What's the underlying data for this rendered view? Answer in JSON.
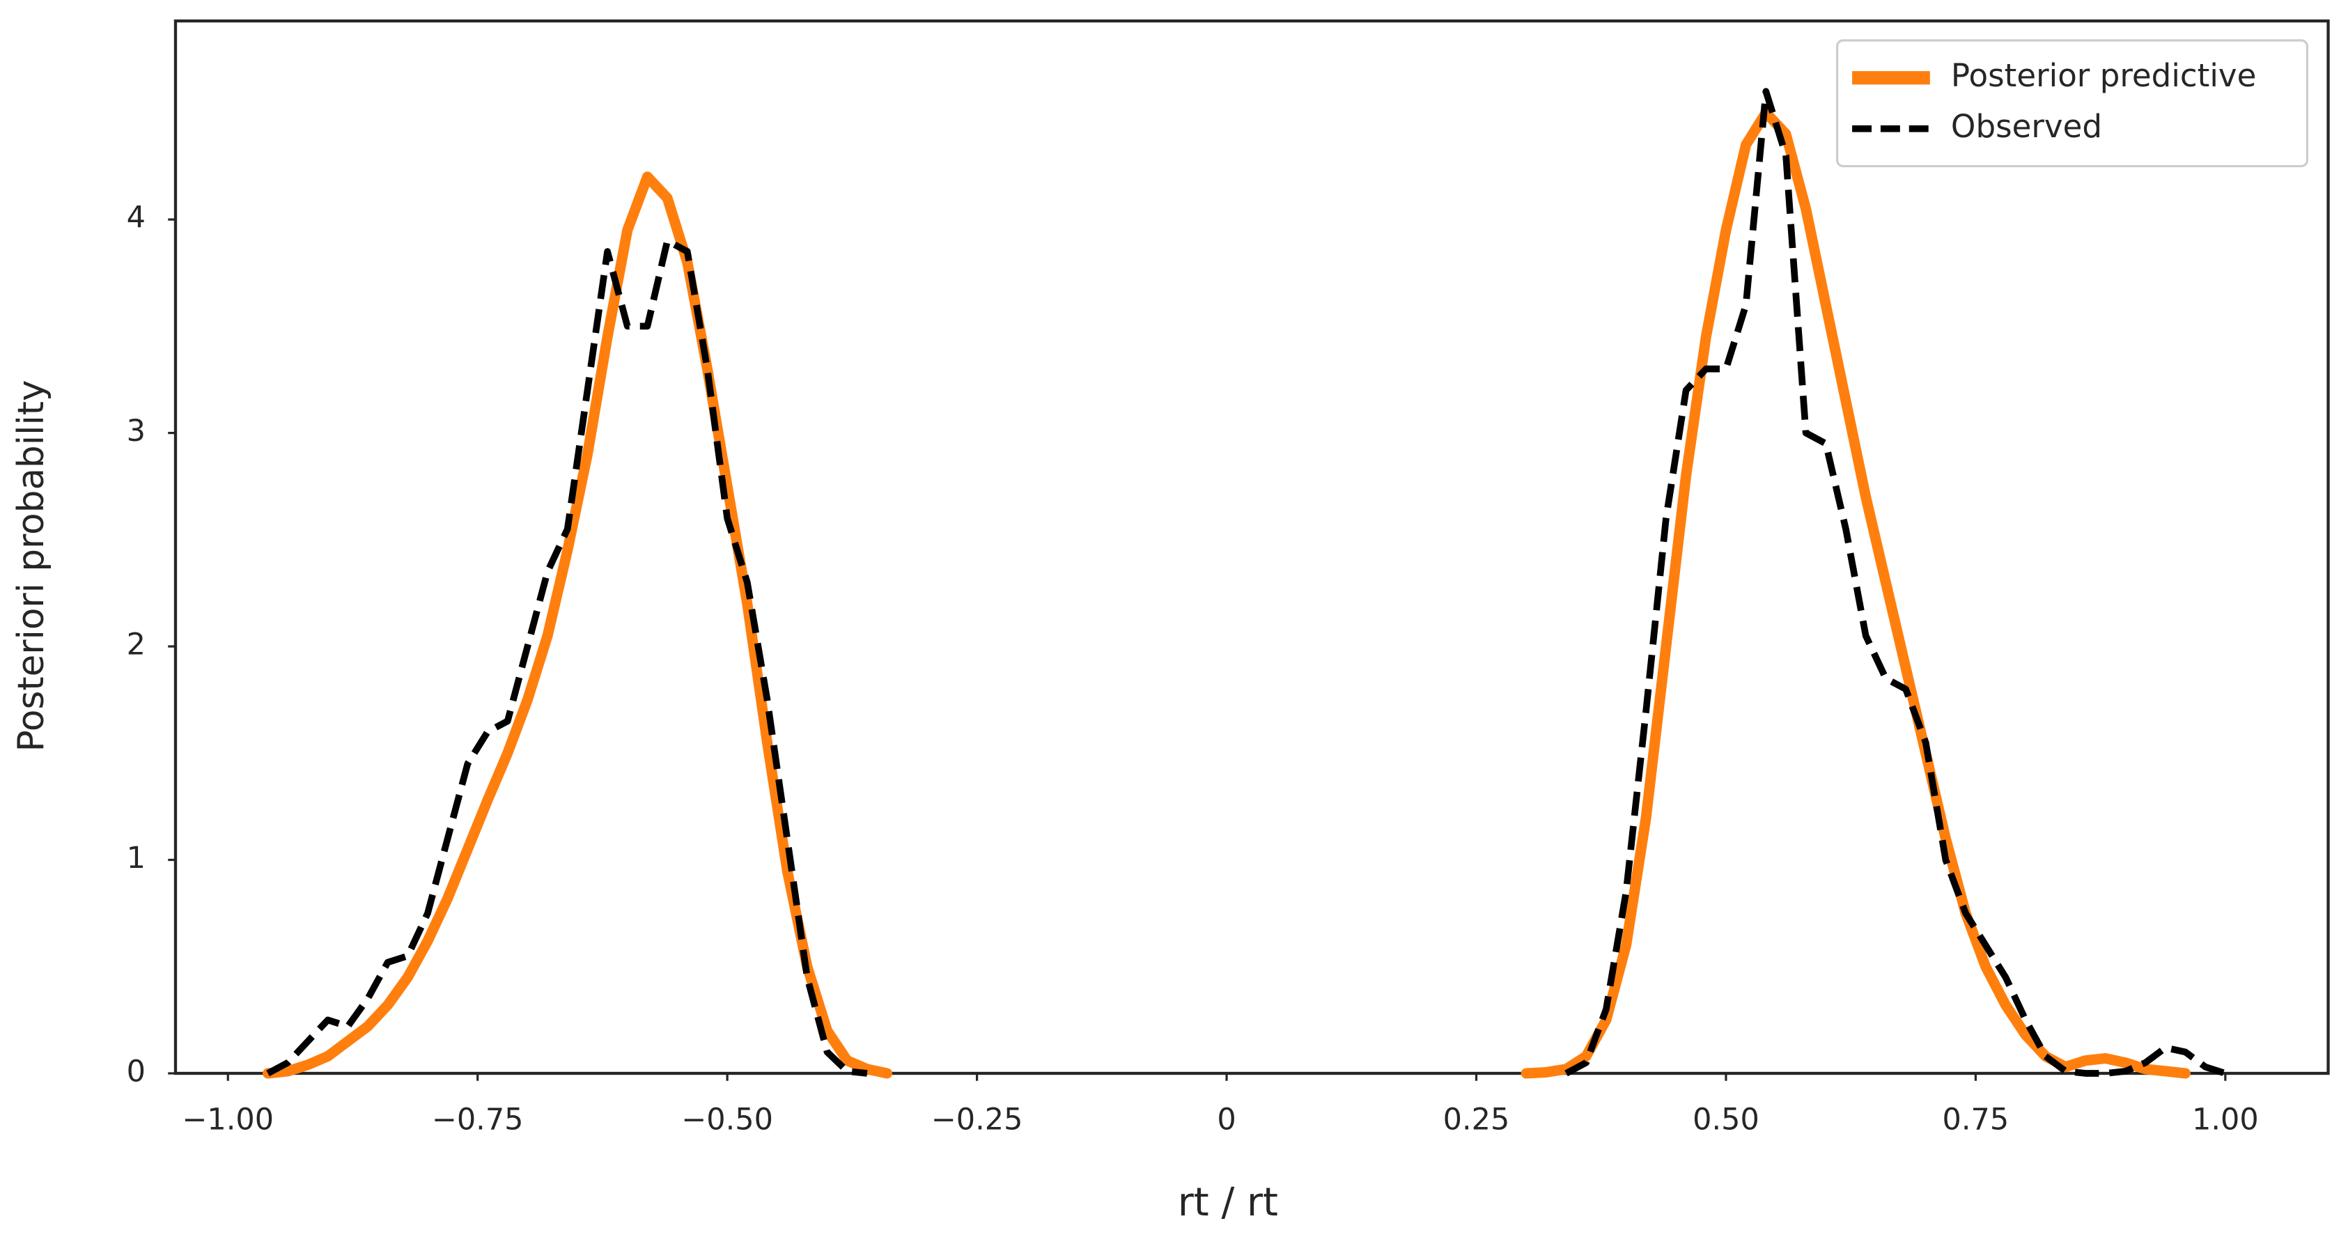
{
  "chart_data": {
    "type": "line",
    "xlabel": "rt / rt",
    "ylabel": "Posteriori  probability",
    "x": [
      -0.96,
      -0.94,
      -0.92,
      -0.9,
      -0.88,
      -0.86,
      -0.84,
      -0.82,
      -0.8,
      -0.78,
      -0.76,
      -0.74,
      -0.72,
      -0.7,
      -0.68,
      -0.66,
      -0.64,
      -0.62,
      -0.6,
      -0.58,
      -0.56,
      -0.54,
      -0.52,
      -0.5,
      -0.48,
      -0.46,
      -0.44,
      -0.42,
      -0.4,
      -0.38,
      -0.36,
      -0.34,
      0,
      0.3,
      0.32,
      0.34,
      0.36,
      0.38,
      0.4,
      0.42,
      0.44,
      0.46,
      0.48,
      0.5,
      0.52,
      0.54,
      0.56,
      0.58,
      0.6,
      0.62,
      0.64,
      0.66,
      0.68,
      0.7,
      0.72,
      0.74,
      0.76,
      0.78,
      0.8,
      0.82,
      0.84,
      0.86,
      0.88,
      0.9,
      0.92,
      0.94,
      0.96,
      0.98,
      1.0
    ],
    "series": [
      {
        "name": "Posterior predictive",
        "color": "#ff7f0e",
        "dashed": false,
        "values": [
          0,
          0.01,
          0.04,
          0.08,
          0.15,
          0.22,
          0.32,
          0.45,
          0.62,
          0.82,
          1.05,
          1.28,
          1.5,
          1.75,
          2.05,
          2.45,
          2.9,
          3.45,
          3.95,
          4.2,
          4.1,
          3.8,
          3.3,
          2.75,
          2.2,
          1.55,
          0.95,
          0.5,
          0.2,
          0.06,
          0.02,
          0,
          null,
          0,
          0.005,
          0.02,
          0.08,
          0.25,
          0.6,
          1.2,
          2.0,
          2.8,
          3.45,
          3.95,
          4.35,
          4.5,
          4.4,
          4.05,
          3.6,
          3.15,
          2.7,
          2.3,
          1.9,
          1.5,
          1.1,
          0.75,
          0.5,
          0.32,
          0.18,
          0.08,
          0.03,
          0.06,
          0.07,
          0.05,
          0.02,
          0.01,
          0,
          null,
          null
        ]
      },
      {
        "name": "Observed",
        "color": "#000000",
        "dashed": true,
        "values": [
          0,
          0.05,
          0.15,
          0.25,
          0.22,
          0.35,
          0.52,
          0.55,
          0.75,
          1.1,
          1.45,
          1.6,
          1.65,
          2.0,
          2.35,
          2.55,
          3.2,
          3.85,
          3.5,
          3.5,
          3.9,
          3.85,
          3.3,
          2.6,
          2.3,
          1.75,
          1.1,
          0.45,
          0.1,
          0.01,
          0,
          null,
          null,
          null,
          null,
          0,
          0.05,
          0.3,
          0.85,
          1.7,
          2.6,
          3.2,
          3.3,
          3.3,
          3.6,
          4.6,
          4.3,
          3.0,
          2.95,
          2.55,
          2.05,
          1.85,
          1.8,
          1.55,
          1.0,
          0.75,
          0.6,
          0.45,
          0.25,
          0.08,
          0.01,
          0,
          0,
          0.01,
          0.05,
          0.12,
          0.1,
          0.03,
          0
        ]
      }
    ],
    "xlim": [
      -1.0525,
      1.103
    ],
    "ylim": [
      0,
      4.93
    ],
    "xticks": [
      {
        "value": -1,
        "label": "−1.00"
      },
      {
        "value": -0.75,
        "label": "−0.75"
      },
      {
        "value": -0.5,
        "label": "−0.50"
      },
      {
        "value": -0.25,
        "label": "−0.25"
      },
      0,
      0.25,
      {
        "value": 0.5,
        "label": "0.50"
      },
      0.75,
      {
        "value": 1,
        "label": "1.00"
      }
    ],
    "yticks": [
      0,
      1,
      2,
      3,
      4
    ],
    "grid": false,
    "legend": "upper right"
  }
}
